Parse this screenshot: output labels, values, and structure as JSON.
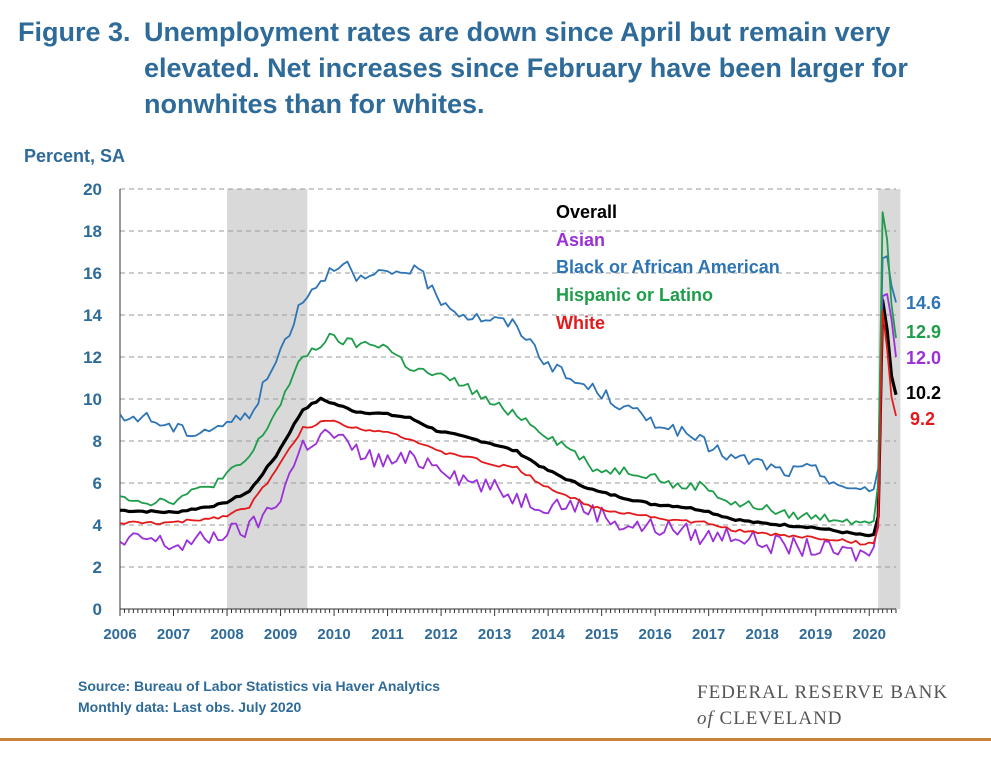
{
  "header": {
    "title_lead": "Figure 3.",
    "title_line1": "Unemployment rates are down since April but remain very",
    "title_line2": "elevated.  Net increases since February have been larger for",
    "title_line3": "nonwhites than for whites."
  },
  "footer": {
    "source": "Source: Bureau of Labor Statistics via Haver Analytics",
    "note": "Monthly data: Last obs. July 2020",
    "org_line1": "FEDERAL RESERVE BANK",
    "org_of": "of",
    "org_line2": "CLEVELAND"
  },
  "colors": {
    "title": "#2e6b99",
    "recession_shade": "#d9d9d9",
    "rule": "#c8853a"
  },
  "chart_data": {
    "type": "line",
    "title": "",
    "xlabel": "",
    "ylabel": "Percent, SA",
    "ylim": [
      0,
      20
    ],
    "yticks": [
      0,
      2,
      4,
      6,
      8,
      10,
      12,
      14,
      16,
      18,
      20
    ],
    "xlim": [
      "2006-01",
      "2020-07"
    ],
    "xticks": [
      "2006",
      "2007",
      "2008",
      "2009",
      "2010",
      "2011",
      "2012",
      "2013",
      "2014",
      "2015",
      "2016",
      "2017",
      "2018",
      "2019",
      "2020"
    ],
    "grid": "horizontal dashed",
    "legend": "inside top-center",
    "recessions": [
      {
        "start": "2008-01",
        "end": "2009-06"
      },
      {
        "start": "2020-03",
        "end": "2020-07"
      }
    ],
    "series": [
      {
        "name": "Overall",
        "color": "#000000",
        "end_label": "10.2",
        "points": [
          [
            "2006-01",
            4.7
          ],
          [
            "2007-01",
            4.6
          ],
          [
            "2007-12",
            5.0
          ],
          [
            "2008-06",
            5.6
          ],
          [
            "2008-12",
            7.3
          ],
          [
            "2009-06",
            9.5
          ],
          [
            "2009-10",
            10.0
          ],
          [
            "2010-06",
            9.4
          ],
          [
            "2010-12",
            9.3
          ],
          [
            "2011-06",
            9.1
          ],
          [
            "2011-12",
            8.5
          ],
          [
            "2012-06",
            8.2
          ],
          [
            "2012-12",
            7.9
          ],
          [
            "2013-06",
            7.5
          ],
          [
            "2013-12",
            6.7
          ],
          [
            "2014-06",
            6.1
          ],
          [
            "2014-12",
            5.6
          ],
          [
            "2015-06",
            5.3
          ],
          [
            "2015-12",
            5.0
          ],
          [
            "2016-06",
            4.9
          ],
          [
            "2016-12",
            4.7
          ],
          [
            "2017-06",
            4.3
          ],
          [
            "2017-12",
            4.1
          ],
          [
            "2018-06",
            4.0
          ],
          [
            "2018-12",
            3.9
          ],
          [
            "2019-06",
            3.7
          ],
          [
            "2019-12",
            3.5
          ],
          [
            "2020-02",
            3.5
          ],
          [
            "2020-03",
            4.4
          ],
          [
            "2020-04",
            14.7
          ],
          [
            "2020-05",
            13.3
          ],
          [
            "2020-06",
            11.1
          ],
          [
            "2020-07",
            10.2
          ]
        ]
      },
      {
        "name": "Asian",
        "color": "#9b30d9",
        "end_label": "12.0",
        "points": [
          [
            "2006-01",
            3.0
          ],
          [
            "2006-06",
            3.4
          ],
          [
            "2007-01",
            3.0
          ],
          [
            "2007-06",
            3.2
          ],
          [
            "2007-12",
            3.6
          ],
          [
            "2008-06",
            3.8
          ],
          [
            "2008-12",
            5.0
          ],
          [
            "2009-06",
            7.8
          ],
          [
            "2009-12",
            8.4
          ],
          [
            "2010-06",
            7.5
          ],
          [
            "2010-12",
            7.0
          ],
          [
            "2011-06",
            7.1
          ],
          [
            "2011-12",
            7.0
          ],
          [
            "2012-06",
            6.2
          ],
          [
            "2012-12",
            5.8
          ],
          [
            "2013-06",
            5.3
          ],
          [
            "2013-12",
            5.0
          ],
          [
            "2014-06",
            5.0
          ],
          [
            "2014-12",
            4.6
          ],
          [
            "2015-06",
            4.0
          ],
          [
            "2015-12",
            3.9
          ],
          [
            "2016-06",
            3.8
          ],
          [
            "2016-12",
            3.4
          ],
          [
            "2017-06",
            3.6
          ],
          [
            "2017-12",
            3.2
          ],
          [
            "2018-06",
            3.0
          ],
          [
            "2018-12",
            2.9
          ],
          [
            "2019-06",
            2.7
          ],
          [
            "2019-12",
            2.6
          ],
          [
            "2020-02",
            2.8
          ],
          [
            "2020-03",
            4.1
          ],
          [
            "2020-04",
            14.9
          ],
          [
            "2020-05",
            15.0
          ],
          [
            "2020-06",
            13.8
          ],
          [
            "2020-07",
            12.0
          ]
        ]
      },
      {
        "name": "Black or African American",
        "color": "#2e75b6",
        "end_label": "14.6",
        "points": [
          [
            "2006-01",
            9.0
          ],
          [
            "2006-06",
            9.2
          ],
          [
            "2007-01",
            8.6
          ],
          [
            "2007-06",
            8.4
          ],
          [
            "2007-12",
            8.8
          ],
          [
            "2008-06",
            9.2
          ],
          [
            "2008-12",
            11.8
          ],
          [
            "2009-06",
            14.8
          ],
          [
            "2009-12",
            16.1
          ],
          [
            "2010-03",
            16.7
          ],
          [
            "2010-06",
            15.6
          ],
          [
            "2010-12",
            15.9
          ],
          [
            "2011-06",
            16.2
          ],
          [
            "2011-09",
            15.8
          ],
          [
            "2011-12",
            14.9
          ],
          [
            "2012-06",
            14.0
          ],
          [
            "2012-12",
            13.8
          ],
          [
            "2013-06",
            13.5
          ],
          [
            "2013-12",
            11.9
          ],
          [
            "2014-06",
            10.9
          ],
          [
            "2014-12",
            10.4
          ],
          [
            "2015-06",
            9.6
          ],
          [
            "2015-12",
            9.0
          ],
          [
            "2016-06",
            8.5
          ],
          [
            "2016-12",
            7.9
          ],
          [
            "2017-06",
            7.2
          ],
          [
            "2017-12",
            7.0
          ],
          [
            "2018-06",
            6.5
          ],
          [
            "2018-12",
            6.7
          ],
          [
            "2019-06",
            6.0
          ],
          [
            "2019-09",
            5.5
          ],
          [
            "2019-12",
            5.8
          ],
          [
            "2020-02",
            5.8
          ],
          [
            "2020-03",
            6.7
          ],
          [
            "2020-04",
            16.7
          ],
          [
            "2020-05",
            16.8
          ],
          [
            "2020-06",
            15.4
          ],
          [
            "2020-07",
            14.6
          ]
        ]
      },
      {
        "name": "Hispanic or Latino",
        "color": "#1e9e4a",
        "end_label": "12.9",
        "points": [
          [
            "2006-01",
            5.5
          ],
          [
            "2006-06",
            5.1
          ],
          [
            "2007-01",
            5.2
          ],
          [
            "2007-06",
            5.6
          ],
          [
            "2007-12",
            6.2
          ],
          [
            "2008-06",
            7.2
          ],
          [
            "2008-12",
            9.4
          ],
          [
            "2009-06",
            12.0
          ],
          [
            "2009-12",
            12.9
          ],
          [
            "2010-06",
            12.6
          ],
          [
            "2010-12",
            12.6
          ],
          [
            "2011-06",
            11.5
          ],
          [
            "2011-12",
            11.1
          ],
          [
            "2012-06",
            10.7
          ],
          [
            "2012-12",
            9.8
          ],
          [
            "2013-06",
            9.3
          ],
          [
            "2013-12",
            8.4
          ],
          [
            "2014-06",
            7.6
          ],
          [
            "2014-12",
            6.6
          ],
          [
            "2015-06",
            6.6
          ],
          [
            "2015-12",
            6.4
          ],
          [
            "2016-06",
            5.8
          ],
          [
            "2016-12",
            5.9
          ],
          [
            "2017-06",
            5.0
          ],
          [
            "2017-12",
            4.9
          ],
          [
            "2018-06",
            4.5
          ],
          [
            "2018-12",
            4.4
          ],
          [
            "2019-06",
            4.3
          ],
          [
            "2019-12",
            4.2
          ],
          [
            "2020-02",
            4.4
          ],
          [
            "2020-03",
            6.0
          ],
          [
            "2020-04",
            18.9
          ],
          [
            "2020-05",
            17.6
          ],
          [
            "2020-06",
            14.5
          ],
          [
            "2020-07",
            12.9
          ]
        ]
      },
      {
        "name": "White",
        "color": "#e31a1c",
        "end_label": "9.2",
        "points": [
          [
            "2006-01",
            4.1
          ],
          [
            "2007-01",
            4.1
          ],
          [
            "2007-12",
            4.4
          ],
          [
            "2008-06",
            4.9
          ],
          [
            "2008-12",
            6.6
          ],
          [
            "2009-06",
            8.6
          ],
          [
            "2009-12",
            9.0
          ],
          [
            "2010-06",
            8.6
          ],
          [
            "2010-12",
            8.5
          ],
          [
            "2011-06",
            8.1
          ],
          [
            "2011-12",
            7.5
          ],
          [
            "2012-06",
            7.3
          ],
          [
            "2012-12",
            6.9
          ],
          [
            "2013-06",
            6.7
          ],
          [
            "2013-12",
            5.9
          ],
          [
            "2014-06",
            5.3
          ],
          [
            "2014-12",
            4.8
          ],
          [
            "2015-06",
            4.6
          ],
          [
            "2015-12",
            4.4
          ],
          [
            "2016-06",
            4.2
          ],
          [
            "2016-12",
            4.1
          ],
          [
            "2017-06",
            3.8
          ],
          [
            "2017-12",
            3.6
          ],
          [
            "2018-06",
            3.5
          ],
          [
            "2018-12",
            3.4
          ],
          [
            "2019-06",
            3.3
          ],
          [
            "2019-12",
            3.1
          ],
          [
            "2020-02",
            3.1
          ],
          [
            "2020-03",
            3.9
          ],
          [
            "2020-04",
            14.2
          ],
          [
            "2020-05",
            12.4
          ],
          [
            "2020-06",
            10.1
          ],
          [
            "2020-07",
            9.2
          ]
        ]
      }
    ]
  }
}
